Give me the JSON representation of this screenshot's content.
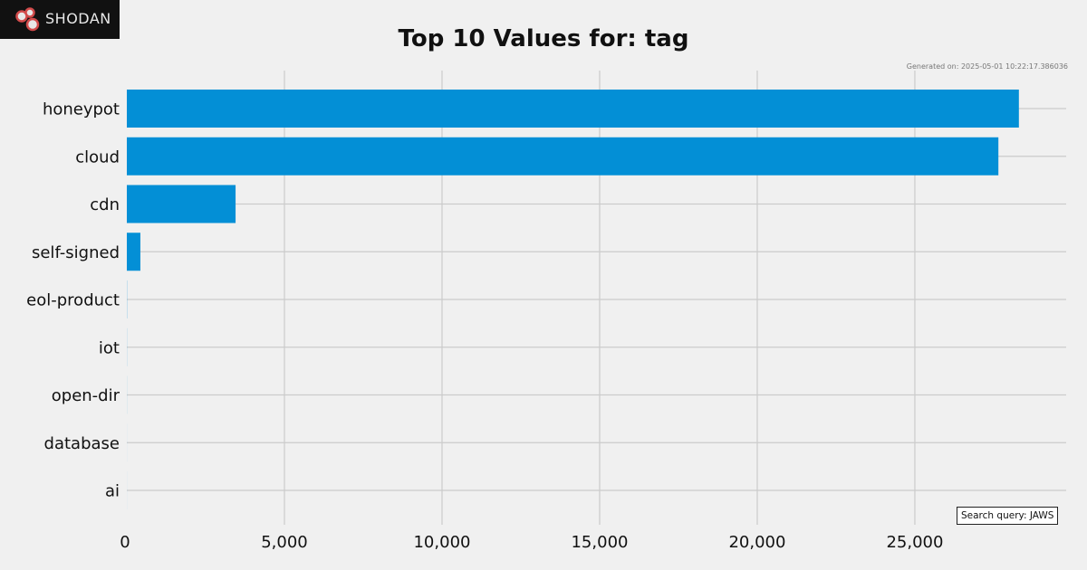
{
  "header": {
    "logo_text": "SHODAN",
    "generated": "Generated on: 2025-05-01 10:22:17.386036",
    "search_query": "Search query: JAWS"
  },
  "colors": {
    "bar": "#038fd6",
    "grid": "#cbcbcb",
    "background": "#f0f0f0"
  },
  "chart_data": {
    "type": "bar",
    "orientation": "horizontal",
    "title": "Top 10 Values for: tag",
    "xlabel": "",
    "ylabel": "",
    "categories": [
      "honeypot",
      "cloud",
      "cdn",
      "self-signed",
      "eol-product",
      "iot",
      "open-dir",
      "database",
      "ai"
    ],
    "values": [
      28300,
      27650,
      3450,
      430,
      5,
      3,
      2,
      1,
      1
    ],
    "xlim": [
      0,
      29800
    ],
    "xticks": [
      0,
      5000,
      10000,
      15000,
      20000,
      25000
    ],
    "xtick_labels": [
      "0",
      "5,000",
      "10,000",
      "15,000",
      "20,000",
      "25,000"
    ],
    "grid": true
  }
}
